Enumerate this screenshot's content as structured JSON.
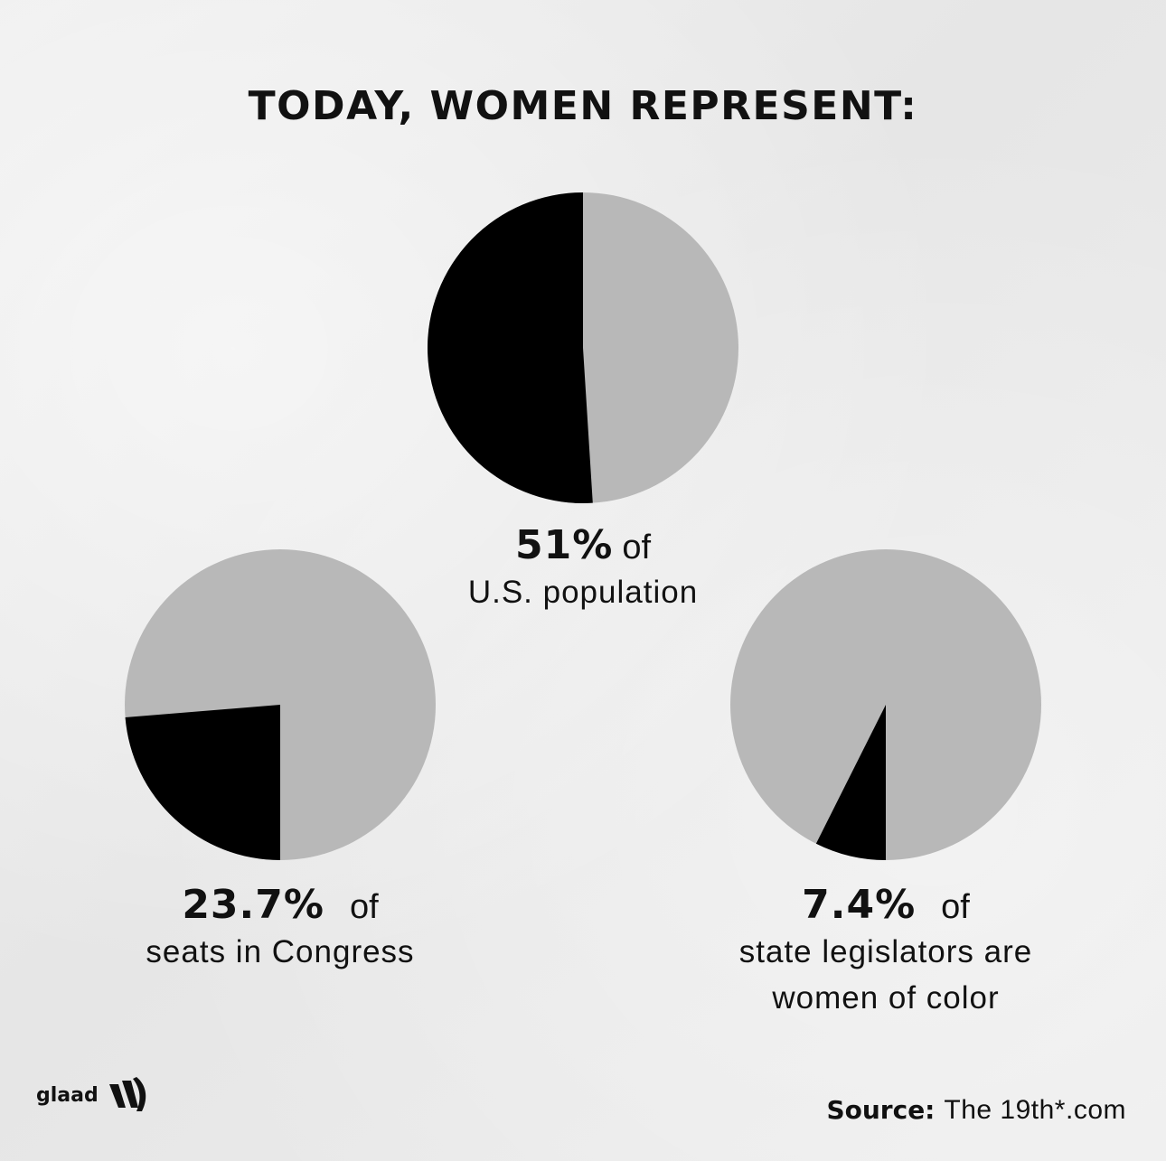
{
  "title": "TODAY, WOMEN REPRESENT:",
  "colors": {
    "women": "#000000",
    "rest": "#b8b8b8",
    "background": "#ececec"
  },
  "chart_data": [
    {
      "type": "pie",
      "title": "51% of U.S. population",
      "values": [
        51,
        49
      ],
      "highlight_value": 51,
      "label": {
        "pct": "51%",
        "of": "of",
        "desc": [
          "U.S. population"
        ]
      }
    },
    {
      "type": "pie",
      "title": "23.7% of seats in Congress",
      "values": [
        23.7,
        76.3
      ],
      "highlight_value": 23.7,
      "label": {
        "pct": "23.7%",
        "of": "of",
        "desc": [
          "seats in Congress"
        ]
      }
    },
    {
      "type": "pie",
      "title": "7.4% of state legislators are women of color",
      "values": [
        7.4,
        92.6
      ],
      "highlight_value": 7.4,
      "label": {
        "pct": "7.4%",
        "of": "of",
        "desc": [
          "state legislators are",
          "women of color"
        ]
      }
    }
  ],
  "footer": {
    "logo_text": "glaad",
    "source_label": "Source:",
    "source_value": "The 19th*.com"
  }
}
